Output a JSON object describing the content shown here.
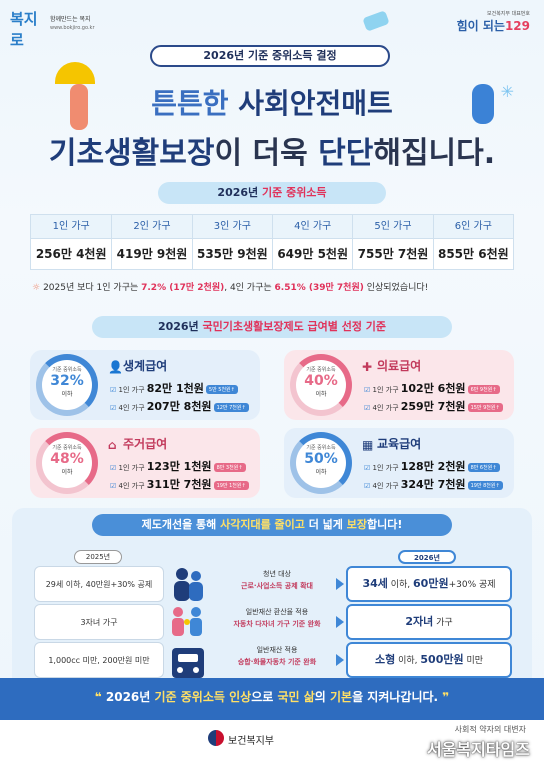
{
  "header": {
    "logo_left_mark": "복지로",
    "logo_left_slogan": "함께만드는 복지",
    "logo_left_url": "www.bokjiro.go.kr",
    "logo_right_small": "보건복지부 대표번호",
    "logo_right_text": "힘이 되는",
    "logo_right_num": "129",
    "title_pill": "2026년 기준 중위소득 결정",
    "headline1_a": "튼튼한 ",
    "headline1_b": "사회안전매트",
    "headline2_a": "기초생활보장",
    "headline2_b": "이 더욱 ",
    "headline2_c": "단단",
    "headline2_d": "해집니다."
  },
  "income": {
    "pill_a": "2026년 ",
    "pill_b": "기준 중위소득",
    "columns": [
      {
        "header": "1인 가구",
        "value": "256만 4천원"
      },
      {
        "header": "2인 가구",
        "value": "419만 9천원"
      },
      {
        "header": "3인 가구",
        "value": "535만 9천원"
      },
      {
        "header": "4인 가구",
        "value": "649만 5천원"
      },
      {
        "header": "5인 가구",
        "value": "755만 7천원"
      },
      {
        "header": "6인 가구",
        "value": "855만 6천원"
      }
    ],
    "note_a": "2025년 보다 1인 가구는 ",
    "note_b": "7.2% (17만 2천원)",
    "note_c": ", 4인 가구는 ",
    "note_d": "6.51% (39만 7천원)",
    "note_e": " 인상되었습니다!"
  },
  "benefits": {
    "pill_a": "2026년 ",
    "pill_b": "국민기초생활보장제도 급여별 선정 기준",
    "ring_caption": "기준 중위소득",
    "ring_below": "이하",
    "cards": [
      {
        "title": "생계급여",
        "pct": "32%",
        "row1_label": "1인 가구",
        "row1_amt": "82만 1천원",
        "row1_tag": "5만 5천원↑",
        "row2_label": "4인 가구",
        "row2_amt": "207만 8천원",
        "row2_tag": "12만 7천원↑"
      },
      {
        "title": "의료급여",
        "pct": "40%",
        "row1_label": "1인 가구",
        "row1_amt": "102만 6천원",
        "row1_tag": "6만 9천원↑",
        "row2_label": "4인 가구",
        "row2_amt": "259만 7천원",
        "row2_tag": "15만 9천원↑"
      },
      {
        "title": "주거급여",
        "pct": "48%",
        "row1_label": "1인 가구",
        "row1_amt": "123만 1천원",
        "row1_tag": "8만 3천원↑",
        "row2_label": "4인 가구",
        "row2_amt": "311만 7천원",
        "row2_tag": "19만 1천원↑"
      },
      {
        "title": "교육급여",
        "pct": "50%",
        "row1_label": "1인 가구",
        "row1_amt": "128만 2천원",
        "row1_tag": "8만 6천원↑",
        "row2_label": "4인 가구",
        "row2_amt": "324만 7천원",
        "row2_tag": "19만 8천원↑"
      }
    ]
  },
  "improvements": {
    "pill_a": "제도개선을 통해 ",
    "pill_b": "사각지대를 줄이고",
    "pill_c": " 더 넓게 ",
    "pill_d": "보장",
    "pill_e": "합니다!",
    "year_old": "2025년",
    "year_new": "2026년",
    "rows": [
      {
        "old": "29세 이하, 40만원+30% 공제",
        "label": "청년 대상",
        "sub": "근로·사업소득 공제 확대",
        "new_big": "34세",
        "new_rest": " 이하, ",
        "new_big2": "60만원",
        "new_rest2": "+30% 공제"
      },
      {
        "old": "3자녀 가구",
        "label": "일반재산 환산율 적용",
        "sub": "자동차 다자녀 가구 기준 완화",
        "new_big": "2자녀",
        "new_rest": " 가구",
        "new_big2": "",
        "new_rest2": ""
      },
      {
        "old": "1,000cc 미만, 200만원 미만",
        "label": "일반재산 적용",
        "sub": "승합·화물자동차 기준 완화",
        "new_big": "소형",
        "new_rest": " 이하, ",
        "new_big2": "500만원",
        "new_rest2": " 미만"
      }
    ]
  },
  "footer": {
    "slogan_a": "2026년 ",
    "slogan_b": "기준 중위소득 인상",
    "slogan_c": "으로 ",
    "slogan_d": "국민 삶",
    "slogan_e": "의 ",
    "slogan_f": "기본",
    "slogan_g": "을 지켜나갑니다.",
    "ministry": "보건복지부",
    "watermark_small": "사회적 약자의 대변자",
    "watermark_big": "서울복지타임즈"
  },
  "colors": {
    "primary": "#1f3d7a",
    "accent_blue": "#3f87d6",
    "accent_pink": "#e76a88",
    "highlight": "#e0325a",
    "footer_band": "#2e6cbf"
  }
}
